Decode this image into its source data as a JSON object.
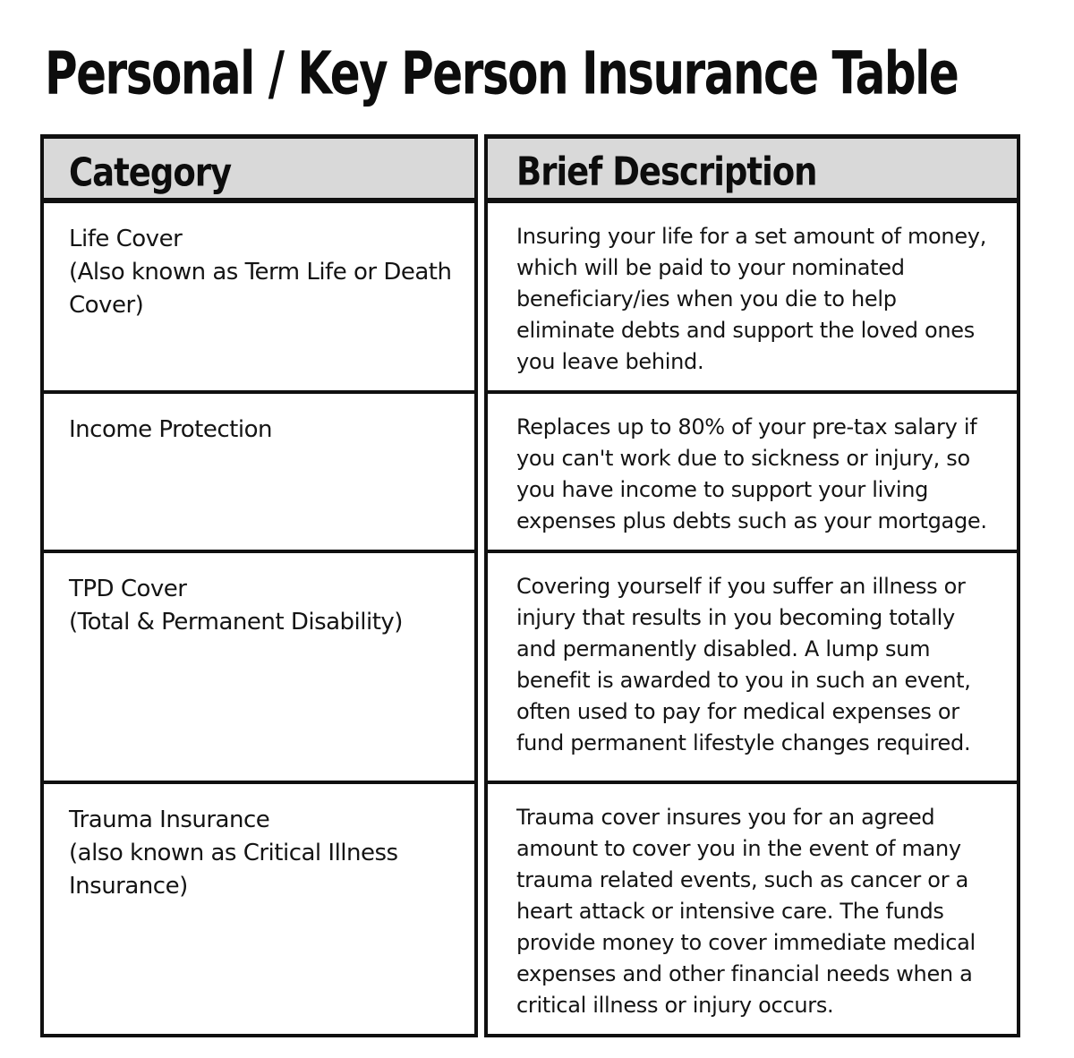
{
  "page": {
    "title": "Personal / Key Person Insurance Table"
  },
  "colors": {
    "header_background": "#d9d9d9",
    "border": "#101010",
    "text": "#141414",
    "page_background": "#ffffff"
  },
  "table": {
    "columns": [
      {
        "label": "Category"
      },
      {
        "label": "Brief Description"
      }
    ],
    "rows": [
      {
        "category": "Life Cover",
        "category_note": "(Also known as Term Life or Death Cover)",
        "description": "Insuring your life for a set amount of money, which will be paid to your nominated beneficiary/ies when you die to help eliminate debts and support the loved ones you leave behind."
      },
      {
        "category": "Income Protection",
        "category_note": "",
        "description": "Replaces up to 80% of your pre-tax salary if you can't work due to sickness or injury, so you have income to support your living expenses plus debts such as your mortgage."
      },
      {
        "category": "TPD Cover",
        "category_note": "(Total & Permanent Disability)",
        "description": "Covering yourself if you suffer an illness or injury that results in you becoming totally and permanently disabled. A lump sum benefit is awarded to you in such an event, often used to pay for medical expenses or fund permanent lifestyle changes required."
      },
      {
        "category": "Trauma Insurance",
        "category_note": "(also known as Critical Illness Insurance)",
        "description": "Trauma cover insures you for an agreed amount to cover you in the event of many trauma related events, such as cancer or a heart attack or intensive care. The funds provide money to cover immediate medical expenses and other financial needs when a critical illness or injury occurs."
      }
    ]
  }
}
